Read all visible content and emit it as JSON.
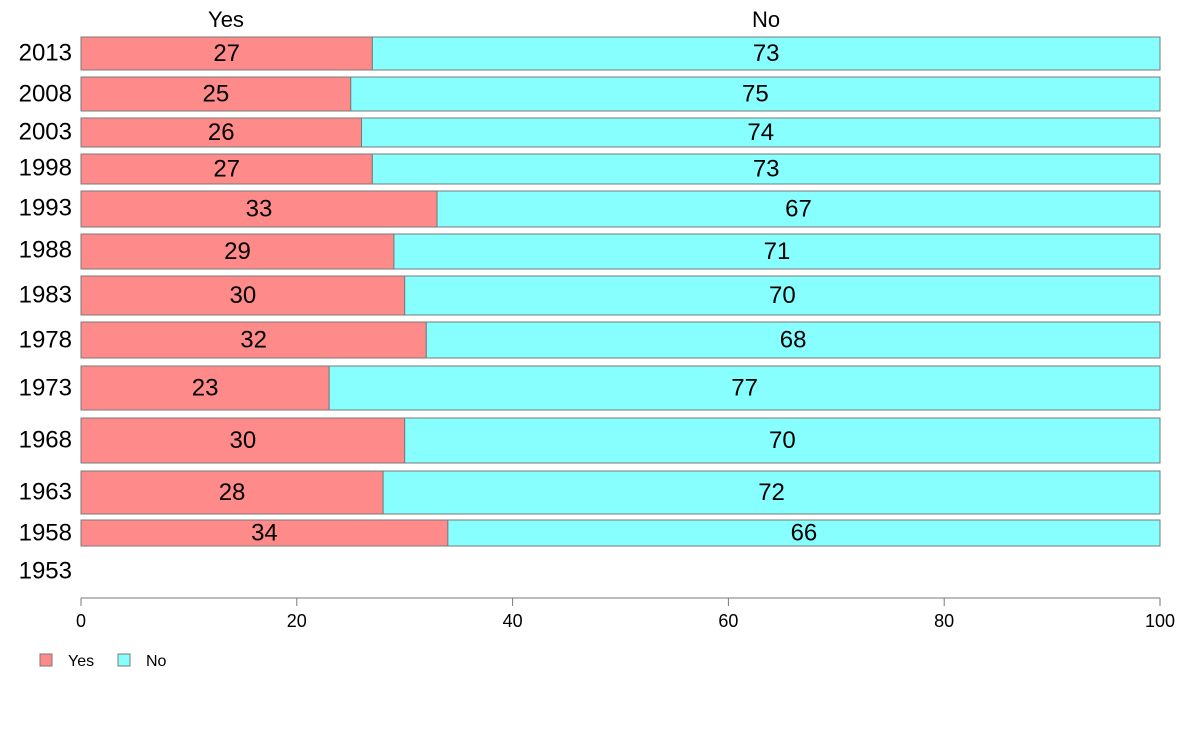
{
  "chart_data": {
    "type": "bar",
    "stacked": true,
    "orientation": "horizontal",
    "categories": [
      "2013",
      "2008",
      "2003",
      "1998",
      "1993",
      "1988",
      "1983",
      "1978",
      "1973",
      "1968",
      "1963",
      "1958",
      "1953"
    ],
    "series": [
      {
        "name": "Yes",
        "color": "#ff8a8a",
        "values": [
          27,
          25,
          26,
          27,
          33,
          29,
          30,
          32,
          23,
          30,
          28,
          34,
          null
        ]
      },
      {
        "name": "No",
        "color": "#88ffff",
        "values": [
          73,
          75,
          74,
          73,
          67,
          71,
          70,
          68,
          77,
          70,
          72,
          66,
          null
        ]
      }
    ],
    "value_labels": {
      "yes": [
        "27",
        "25",
        "26",
        "27",
        "33",
        "29",
        "30",
        "32",
        "23",
        "30",
        "28",
        "34"
      ],
      "no": [
        "73",
        "75",
        "74",
        "73",
        "67",
        "71",
        "70",
        "68",
        "77",
        "70",
        "72",
        "66"
      ]
    },
    "column_headers": {
      "yes": "Yes",
      "no": "No"
    },
    "xlim": [
      0,
      100
    ],
    "x_ticks": [
      0,
      20,
      40,
      60,
      80,
      100
    ],
    "x_tick_labels": [
      "0",
      "20",
      "40",
      "60",
      "80",
      "100"
    ],
    "legend": {
      "position": "bottom-left",
      "items": [
        "Yes",
        "No"
      ]
    },
    "grid": false,
    "title": "",
    "xlabel": "",
    "ylabel": ""
  }
}
